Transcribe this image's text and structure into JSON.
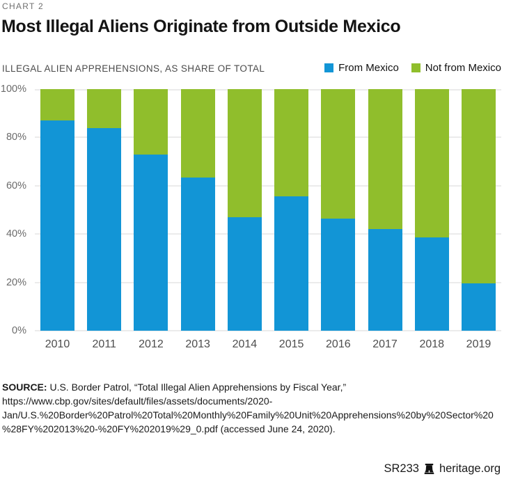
{
  "header": {
    "eyebrow": "CHART 2",
    "title": "Most Illegal Aliens Originate from Outside Mexico",
    "subtitle": "ILLEGAL ALIEN APPREHENSIONS, AS SHARE OF TOTAL"
  },
  "legend": [
    {
      "label": "From Mexico",
      "color": "#1295d6"
    },
    {
      "label": "Not from Mexico",
      "color": "#90be2c"
    }
  ],
  "chart_data": {
    "type": "bar",
    "stacked": true,
    "title": "Most Illegal Aliens Originate from Outside Mexico",
    "subtitle": "Illegal alien apprehensions, as share of total",
    "categories": [
      "2010",
      "2011",
      "2012",
      "2013",
      "2014",
      "2015",
      "2016",
      "2017",
      "2018",
      "2019"
    ],
    "series": [
      {
        "name": "From Mexico",
        "color": "#1295d6",
        "values": [
          87,
          84,
          73,
          63.5,
          47,
          55.5,
          46.5,
          42,
          38.5,
          19.5
        ]
      },
      {
        "name": "Not from Mexico",
        "color": "#90be2c",
        "values": [
          13,
          16,
          27,
          36.5,
          53,
          44.5,
          53.5,
          58,
          61.5,
          80.5
        ]
      }
    ],
    "units": "percent",
    "ylim": [
      0,
      100
    ],
    "y_ticks": [
      "100%",
      "80%",
      "60%",
      "40%",
      "20%",
      "0%"
    ],
    "grid": true,
    "legend_position": "top-right"
  },
  "source": {
    "label": "SOURCE:",
    "text": " U.S. Border Patrol, “Total Illegal Alien Apprehensions by Fiscal Year,” https://www.cbp.gov/sites/default/files/assets/documents/2020-Jan/U.S.%20Border%20Patrol%20Total%20Monthly%20Family%20Unit%20Apprehensions%20by%20Sector%20%28FY%202013%20-%20FY%202019%29_0.pdf (accessed June 24, 2020)."
  },
  "footer": {
    "report_id": "SR233",
    "site": "heritage.org"
  }
}
